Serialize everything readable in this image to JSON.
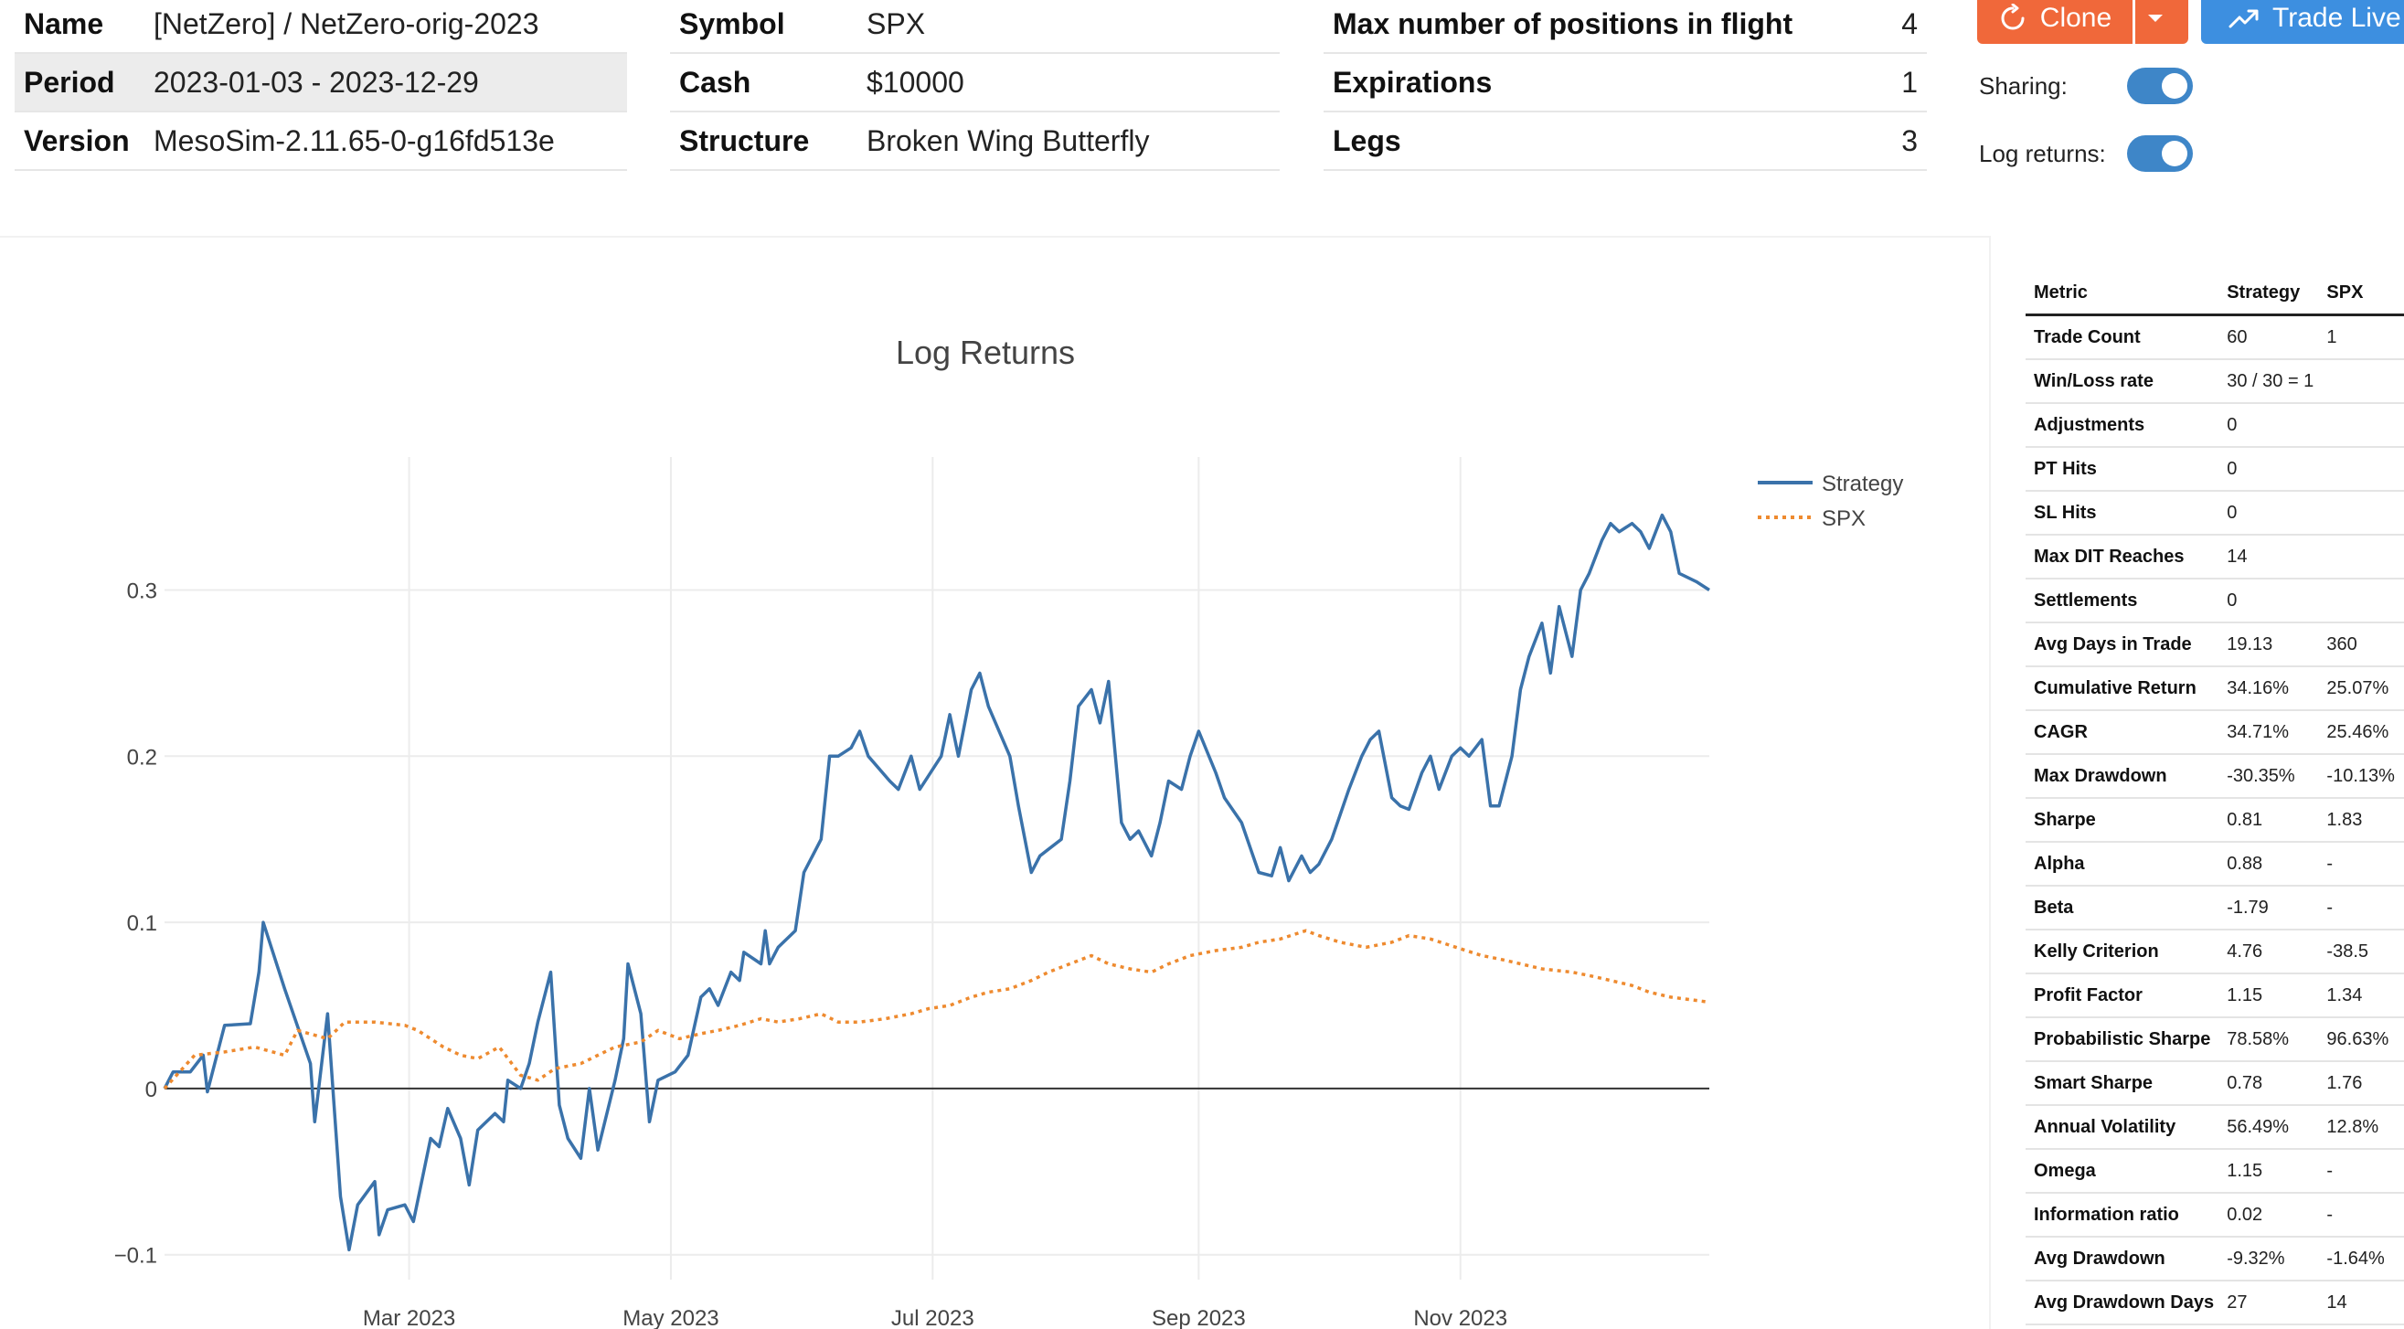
{
  "info": {
    "name_label": "Name",
    "name_value": "[NetZero] / NetZero-orig-2023",
    "period_label": "Period",
    "period_value": "2023-01-03 - 2023-12-29",
    "version_label": "Version",
    "version_value": "MesoSim-2.11.65-0-g16fd513e",
    "symbol_label": "Symbol",
    "symbol_value": "SPX",
    "cash_label": "Cash",
    "cash_value": "$10000",
    "structure_label": "Structure",
    "structure_value": "Broken Wing Butterfly",
    "maxpos_label": "Max number of positions in flight",
    "maxpos_value": "4",
    "expirations_label": "Expirations",
    "expirations_value": "1",
    "legs_label": "Legs",
    "legs_value": "3"
  },
  "actions": {
    "clone_label": "Clone",
    "trade_live_label": "Trade Live",
    "sharing_label": "Sharing:",
    "log_returns_label": "Log returns:",
    "toggle_color": "#3e86c8",
    "clone_color": "#f0683a",
    "trade_color": "#3d8fe0"
  },
  "chart_data": {
    "type": "line",
    "title": "Log Returns",
    "xlabel": "",
    "ylabel": "",
    "x_range": [
      "2023-01-03",
      "2023-12-29"
    ],
    "ylim": [
      -0.115,
      0.38
    ],
    "y_ticks": [
      -0.1,
      0,
      0.1,
      0.2,
      0.3
    ],
    "y_tick_labels": [
      "−0.1",
      "0",
      "0.1",
      "0.2",
      "0.3"
    ],
    "x_ticks": [
      "2023-03-01",
      "2023-05-01",
      "2023-07-01",
      "2023-09-01",
      "2023-11-01"
    ],
    "x_tick_labels": [
      "Mar 2023",
      "May 2023",
      "Jul 2023",
      "Sep 2023",
      "Nov 2023"
    ],
    "grid": true,
    "legend_position": "top-right",
    "series": [
      {
        "name": "Strategy",
        "color": "#3a72aa",
        "style": "solid",
        "points": [
          [
            "2023-01-03",
            0.0
          ],
          [
            "2023-01-05",
            0.01
          ],
          [
            "2023-01-09",
            0.01
          ],
          [
            "2023-01-12",
            0.02
          ],
          [
            "2023-01-13",
            -0.002
          ],
          [
            "2023-01-17",
            0.038
          ],
          [
            "2023-01-23",
            0.039
          ],
          [
            "2023-01-25",
            0.07
          ],
          [
            "2023-01-26",
            0.1
          ],
          [
            "2023-01-31",
            0.06
          ],
          [
            "2023-02-02",
            0.045
          ],
          [
            "2023-02-06",
            0.015
          ],
          [
            "2023-02-07",
            -0.02
          ],
          [
            "2023-02-10",
            0.045
          ],
          [
            "2023-02-13",
            -0.065
          ],
          [
            "2023-02-15",
            -0.097
          ],
          [
            "2023-02-17",
            -0.07
          ],
          [
            "2023-02-21",
            -0.056
          ],
          [
            "2023-02-22",
            -0.088
          ],
          [
            "2023-02-24",
            -0.073
          ],
          [
            "2023-02-28",
            -0.07
          ],
          [
            "2023-03-02",
            -0.08
          ],
          [
            "2023-03-06",
            -0.03
          ],
          [
            "2023-03-08",
            -0.035
          ],
          [
            "2023-03-10",
            -0.012
          ],
          [
            "2023-03-13",
            -0.03
          ],
          [
            "2023-03-15",
            -0.058
          ],
          [
            "2023-03-17",
            -0.025
          ],
          [
            "2023-03-21",
            -0.015
          ],
          [
            "2023-03-23",
            -0.02
          ],
          [
            "2023-03-24",
            0.005
          ],
          [
            "2023-03-27",
            0.0
          ],
          [
            "2023-03-29",
            0.015
          ],
          [
            "2023-03-31",
            0.04
          ],
          [
            "2023-04-03",
            0.07
          ],
          [
            "2023-04-05",
            -0.01
          ],
          [
            "2023-04-07",
            -0.03
          ],
          [
            "2023-04-10",
            -0.042
          ],
          [
            "2023-04-12",
            0.0
          ],
          [
            "2023-04-14",
            -0.037
          ],
          [
            "2023-04-18",
            0.005
          ],
          [
            "2023-04-20",
            0.03
          ],
          [
            "2023-04-21",
            0.075
          ],
          [
            "2023-04-24",
            0.045
          ],
          [
            "2023-04-26",
            -0.02
          ],
          [
            "2023-04-28",
            0.005
          ],
          [
            "2023-05-02",
            0.01
          ],
          [
            "2023-05-05",
            0.02
          ],
          [
            "2023-05-08",
            0.055
          ],
          [
            "2023-05-10",
            0.06
          ],
          [
            "2023-05-12",
            0.05
          ],
          [
            "2023-05-15",
            0.07
          ],
          [
            "2023-05-17",
            0.065
          ],
          [
            "2023-05-18",
            0.082
          ],
          [
            "2023-05-22",
            0.075
          ],
          [
            "2023-05-23",
            0.095
          ],
          [
            "2023-05-24",
            0.075
          ],
          [
            "2023-05-26",
            0.085
          ],
          [
            "2023-05-30",
            0.095
          ],
          [
            "2023-06-01",
            0.13
          ],
          [
            "2023-06-05",
            0.15
          ],
          [
            "2023-06-07",
            0.2
          ],
          [
            "2023-06-09",
            0.2
          ],
          [
            "2023-06-12",
            0.205
          ],
          [
            "2023-06-14",
            0.215
          ],
          [
            "2023-06-16",
            0.2
          ],
          [
            "2023-06-21",
            0.185
          ],
          [
            "2023-06-23",
            0.18
          ],
          [
            "2023-06-26",
            0.2
          ],
          [
            "2023-06-28",
            0.18
          ],
          [
            "2023-07-03",
            0.2
          ],
          [
            "2023-07-05",
            0.225
          ],
          [
            "2023-07-07",
            0.2
          ],
          [
            "2023-07-10",
            0.24
          ],
          [
            "2023-07-12",
            0.25
          ],
          [
            "2023-07-14",
            0.23
          ],
          [
            "2023-07-19",
            0.2
          ],
          [
            "2023-07-21",
            0.17
          ],
          [
            "2023-07-24",
            0.13
          ],
          [
            "2023-07-26",
            0.14
          ],
          [
            "2023-07-31",
            0.15
          ],
          [
            "2023-08-02",
            0.185
          ],
          [
            "2023-08-04",
            0.23
          ],
          [
            "2023-08-07",
            0.24
          ],
          [
            "2023-08-09",
            0.22
          ],
          [
            "2023-08-11",
            0.245
          ],
          [
            "2023-08-14",
            0.16
          ],
          [
            "2023-08-16",
            0.15
          ],
          [
            "2023-08-18",
            0.155
          ],
          [
            "2023-08-21",
            0.14
          ],
          [
            "2023-08-23",
            0.16
          ],
          [
            "2023-08-25",
            0.185
          ],
          [
            "2023-08-28",
            0.18
          ],
          [
            "2023-08-30",
            0.2
          ],
          [
            "2023-09-01",
            0.215
          ],
          [
            "2023-09-05",
            0.19
          ],
          [
            "2023-09-07",
            0.175
          ],
          [
            "2023-09-11",
            0.16
          ],
          [
            "2023-09-13",
            0.145
          ],
          [
            "2023-09-15",
            0.13
          ],
          [
            "2023-09-18",
            0.128
          ],
          [
            "2023-09-20",
            0.145
          ],
          [
            "2023-09-22",
            0.125
          ],
          [
            "2023-09-25",
            0.14
          ],
          [
            "2023-09-27",
            0.13
          ],
          [
            "2023-09-29",
            0.135
          ],
          [
            "2023-10-02",
            0.15
          ],
          [
            "2023-10-04",
            0.165
          ],
          [
            "2023-10-06",
            0.18
          ],
          [
            "2023-10-09",
            0.2
          ],
          [
            "2023-10-11",
            0.21
          ],
          [
            "2023-10-13",
            0.215
          ],
          [
            "2023-10-16",
            0.175
          ],
          [
            "2023-10-18",
            0.17
          ],
          [
            "2023-10-20",
            0.168
          ],
          [
            "2023-10-23",
            0.19
          ],
          [
            "2023-10-25",
            0.2
          ],
          [
            "2023-10-27",
            0.18
          ],
          [
            "2023-10-30",
            0.2
          ],
          [
            "2023-11-01",
            0.205
          ],
          [
            "2023-11-03",
            0.2
          ],
          [
            "2023-11-06",
            0.21
          ],
          [
            "2023-11-08",
            0.17
          ],
          [
            "2023-11-10",
            0.17
          ],
          [
            "2023-11-13",
            0.2
          ],
          [
            "2023-11-15",
            0.24
          ],
          [
            "2023-11-17",
            0.26
          ],
          [
            "2023-11-20",
            0.28
          ],
          [
            "2023-11-22",
            0.25
          ],
          [
            "2023-11-24",
            0.29
          ],
          [
            "2023-11-27",
            0.26
          ],
          [
            "2023-11-29",
            0.3
          ],
          [
            "2023-12-01",
            0.31
          ],
          [
            "2023-12-04",
            0.33
          ],
          [
            "2023-12-06",
            0.34
          ],
          [
            "2023-12-08",
            0.335
          ],
          [
            "2023-12-11",
            0.34
          ],
          [
            "2023-12-13",
            0.335
          ],
          [
            "2023-12-15",
            0.325
          ],
          [
            "2023-12-18",
            0.345
          ],
          [
            "2023-12-20",
            0.335
          ],
          [
            "2023-12-22",
            0.31
          ],
          [
            "2023-12-26",
            0.305
          ],
          [
            "2023-12-29",
            0.3
          ]
        ]
      },
      {
        "name": "SPX",
        "color": "#ee8a2f",
        "style": "dotted",
        "points": [
          [
            "2023-01-03",
            0.0
          ],
          [
            "2023-01-10",
            0.02
          ],
          [
            "2023-01-17",
            0.022
          ],
          [
            "2023-01-24",
            0.025
          ],
          [
            "2023-01-31",
            0.02
          ],
          [
            "2023-02-03",
            0.035
          ],
          [
            "2023-02-10",
            0.03
          ],
          [
            "2023-02-14",
            0.04
          ],
          [
            "2023-02-21",
            0.04
          ],
          [
            "2023-02-28",
            0.038
          ],
          [
            "2023-03-03",
            0.035
          ],
          [
            "2023-03-09",
            0.025
          ],
          [
            "2023-03-13",
            0.02
          ],
          [
            "2023-03-17",
            0.018
          ],
          [
            "2023-03-22",
            0.025
          ],
          [
            "2023-03-27",
            0.008
          ],
          [
            "2023-03-31",
            0.005
          ],
          [
            "2023-04-04",
            0.012
          ],
          [
            "2023-04-10",
            0.015
          ],
          [
            "2023-04-14",
            0.02
          ],
          [
            "2023-04-18",
            0.025
          ],
          [
            "2023-04-24",
            0.028
          ],
          [
            "2023-04-28",
            0.035
          ],
          [
            "2023-05-03",
            0.03
          ],
          [
            "2023-05-08",
            0.033
          ],
          [
            "2023-05-12",
            0.035
          ],
          [
            "2023-05-17",
            0.038
          ],
          [
            "2023-05-22",
            0.042
          ],
          [
            "2023-05-26",
            0.04
          ],
          [
            "2023-05-31",
            0.042
          ],
          [
            "2023-06-05",
            0.045
          ],
          [
            "2023-06-09",
            0.04
          ],
          [
            "2023-06-14",
            0.04
          ],
          [
            "2023-06-20",
            0.042
          ],
          [
            "2023-06-26",
            0.045
          ],
          [
            "2023-06-30",
            0.048
          ],
          [
            "2023-07-05",
            0.05
          ],
          [
            "2023-07-10",
            0.055
          ],
          [
            "2023-07-14",
            0.058
          ],
          [
            "2023-07-19",
            0.06
          ],
          [
            "2023-07-24",
            0.065
          ],
          [
            "2023-07-28",
            0.07
          ],
          [
            "2023-08-02",
            0.075
          ],
          [
            "2023-08-07",
            0.08
          ],
          [
            "2023-08-11",
            0.075
          ],
          [
            "2023-08-16",
            0.072
          ],
          [
            "2023-08-21",
            0.07
          ],
          [
            "2023-08-25",
            0.075
          ],
          [
            "2023-08-30",
            0.08
          ],
          [
            "2023-09-05",
            0.083
          ],
          [
            "2023-09-11",
            0.085
          ],
          [
            "2023-09-15",
            0.088
          ],
          [
            "2023-09-20",
            0.09
          ],
          [
            "2023-09-26",
            0.095
          ],
          [
            "2023-09-29",
            0.092
          ],
          [
            "2023-10-04",
            0.088
          ],
          [
            "2023-10-10",
            0.085
          ],
          [
            "2023-10-16",
            0.088
          ],
          [
            "2023-10-20",
            0.092
          ],
          [
            "2023-10-25",
            0.09
          ],
          [
            "2023-10-31",
            0.085
          ],
          [
            "2023-11-06",
            0.08
          ],
          [
            "2023-11-10",
            0.078
          ],
          [
            "2023-11-15",
            0.075
          ],
          [
            "2023-11-20",
            0.072
          ],
          [
            "2023-11-27",
            0.07
          ],
          [
            "2023-12-01",
            0.068
          ],
          [
            "2023-12-06",
            0.065
          ],
          [
            "2023-12-11",
            0.062
          ],
          [
            "2023-12-15",
            0.058
          ],
          [
            "2023-12-20",
            0.055
          ],
          [
            "2023-12-29",
            0.052
          ]
        ]
      }
    ]
  },
  "metrics": {
    "headers": [
      "Metric",
      "Strategy",
      "SPX"
    ],
    "rows": [
      [
        "Trade Count",
        "60",
        "1"
      ],
      [
        "Win/Loss rate",
        "30 / 30 = 1",
        ""
      ],
      [
        "Adjustments",
        "0",
        ""
      ],
      [
        "PT Hits",
        "0",
        ""
      ],
      [
        "SL Hits",
        "0",
        ""
      ],
      [
        "Max DIT Reaches",
        "14",
        ""
      ],
      [
        "Settlements",
        "0",
        ""
      ],
      [
        "Avg Days in Trade",
        "19.13",
        "360"
      ],
      [
        "Cumulative Return",
        "34.16%",
        "25.07%"
      ],
      [
        "CAGR",
        "34.71%",
        "25.46%"
      ],
      [
        "Max Drawdown",
        "-30.35%",
        "-10.13%"
      ],
      [
        "Sharpe",
        "0.81",
        "1.83"
      ],
      [
        "Alpha",
        "0.88",
        "-"
      ],
      [
        "Beta",
        "-1.79",
        "-"
      ],
      [
        "Kelly Criterion",
        "4.76",
        "-38.5"
      ],
      [
        "Profit Factor",
        "1.15",
        "1.34"
      ],
      [
        "Probabilistic Sharpe",
        "78.58%",
        "96.63%"
      ],
      [
        "Smart Sharpe",
        "0.78",
        "1.76"
      ],
      [
        "Annual Volatility",
        "56.49%",
        "12.8%"
      ],
      [
        "Omega",
        "1.15",
        "-"
      ],
      [
        "Information ratio",
        "0.02",
        "-"
      ],
      [
        "Avg Drawdown",
        "-9.32%",
        "-1.64%"
      ],
      [
        "Avg Drawdown Days",
        "27",
        "14"
      ]
    ]
  }
}
